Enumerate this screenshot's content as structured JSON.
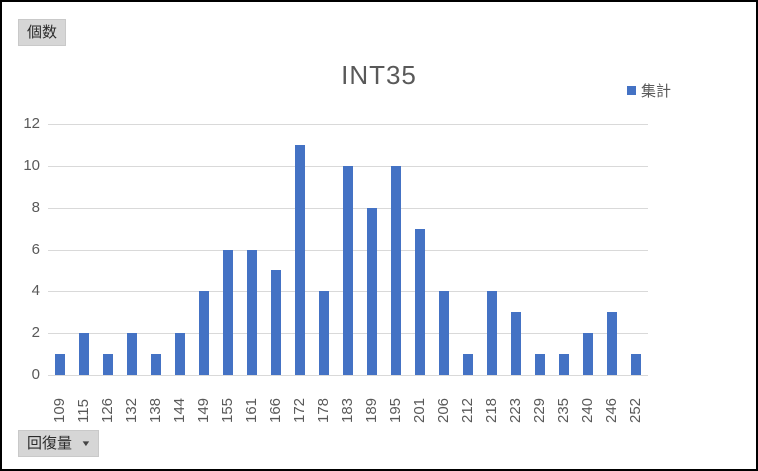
{
  "field_buttons": {
    "value_field": "個数",
    "axis_field": "回復量",
    "dropdown_icon": "▼"
  },
  "chart_data": {
    "type": "bar",
    "title": "INT35",
    "legend": [
      "集計"
    ],
    "legend_position": "top-right",
    "categories": [
      "109",
      "115",
      "126",
      "132",
      "138",
      "144",
      "149",
      "155",
      "161",
      "166",
      "172",
      "178",
      "183",
      "189",
      "195",
      "201",
      "206",
      "212",
      "218",
      "223",
      "229",
      "235",
      "240",
      "246",
      "252"
    ],
    "values": [
      1,
      2,
      1,
      2,
      1,
      2,
      4,
      6,
      6,
      5,
      11,
      4,
      10,
      8,
      10,
      7,
      4,
      1,
      4,
      3,
      1,
      1,
      2,
      3,
      1
    ],
    "xlabel": "",
    "ylabel": "",
    "ylim": [
      0,
      12
    ],
    "yticks": [
      0,
      2,
      4,
      6,
      8,
      10,
      12
    ],
    "grid": true
  },
  "colors": {
    "bar": "#4472c4",
    "gridline": "#d9d9d9",
    "axis_text": "#595959",
    "title_text": "#595959",
    "button_bg": "#d6d6d6",
    "button_text": "#2b2b2b"
  }
}
